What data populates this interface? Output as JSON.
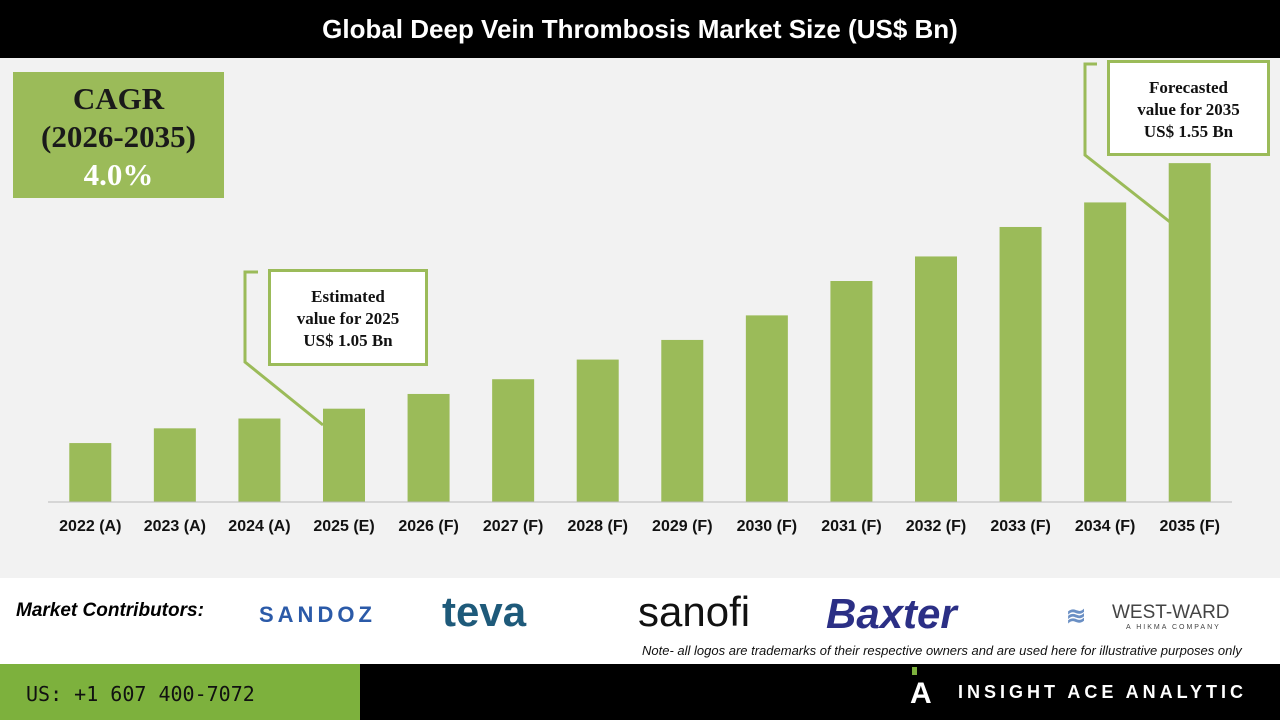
{
  "title": "Global Deep Vein Thrombosis Market Size (US$ Bn)",
  "cagr": {
    "label": "CAGR",
    "period": "(2026-2035)",
    "value": "4.0%"
  },
  "callouts": {
    "estimated": [
      "Estimated",
      "value for 2025",
      "US$ 1.05 Bn"
    ],
    "forecasted": [
      "Forecasted",
      "value for 2035",
      "US$ 1.55 Bn"
    ]
  },
  "colors": {
    "bar": "#9bbb59",
    "header": "#000000",
    "footer_green": "#7db13d"
  },
  "chart_data": {
    "type": "bar",
    "title": "Global Deep Vein Thrombosis Market Size (US$ Bn)",
    "categories": [
      "2022 (A)",
      "2023 (A)",
      "2024 (A)",
      "2025 (E)",
      "2026 (F)",
      "2027 (F)",
      "2028 (F)",
      "2029 (F)",
      "2030 (F)",
      "2031 (F)",
      "2032 (F)",
      "2033 (F)",
      "2034 (F)",
      "2035 (F)"
    ],
    "values": [
      0.98,
      1.01,
      1.03,
      1.05,
      1.08,
      1.11,
      1.15,
      1.19,
      1.24,
      1.31,
      1.36,
      1.42,
      1.47,
      1.55
    ],
    "ylim": [
      0.86,
      1.76
    ],
    "grid": false,
    "xlabel": "",
    "ylabel": ""
  },
  "contributors": {
    "label": "Market Contributors:",
    "logos": [
      "SANDOZ",
      "teva",
      "sanofi",
      "Baxter",
      "WEST-WARD",
      "A HIKMA COMPANY"
    ]
  },
  "note": "Note- all logos are trademarks of their respective owners and are used here for illustrative purposes only",
  "footer": {
    "phone": "US: +1 607 400-7072",
    "brand": "INSIGHT ACE ANALYTIC"
  }
}
